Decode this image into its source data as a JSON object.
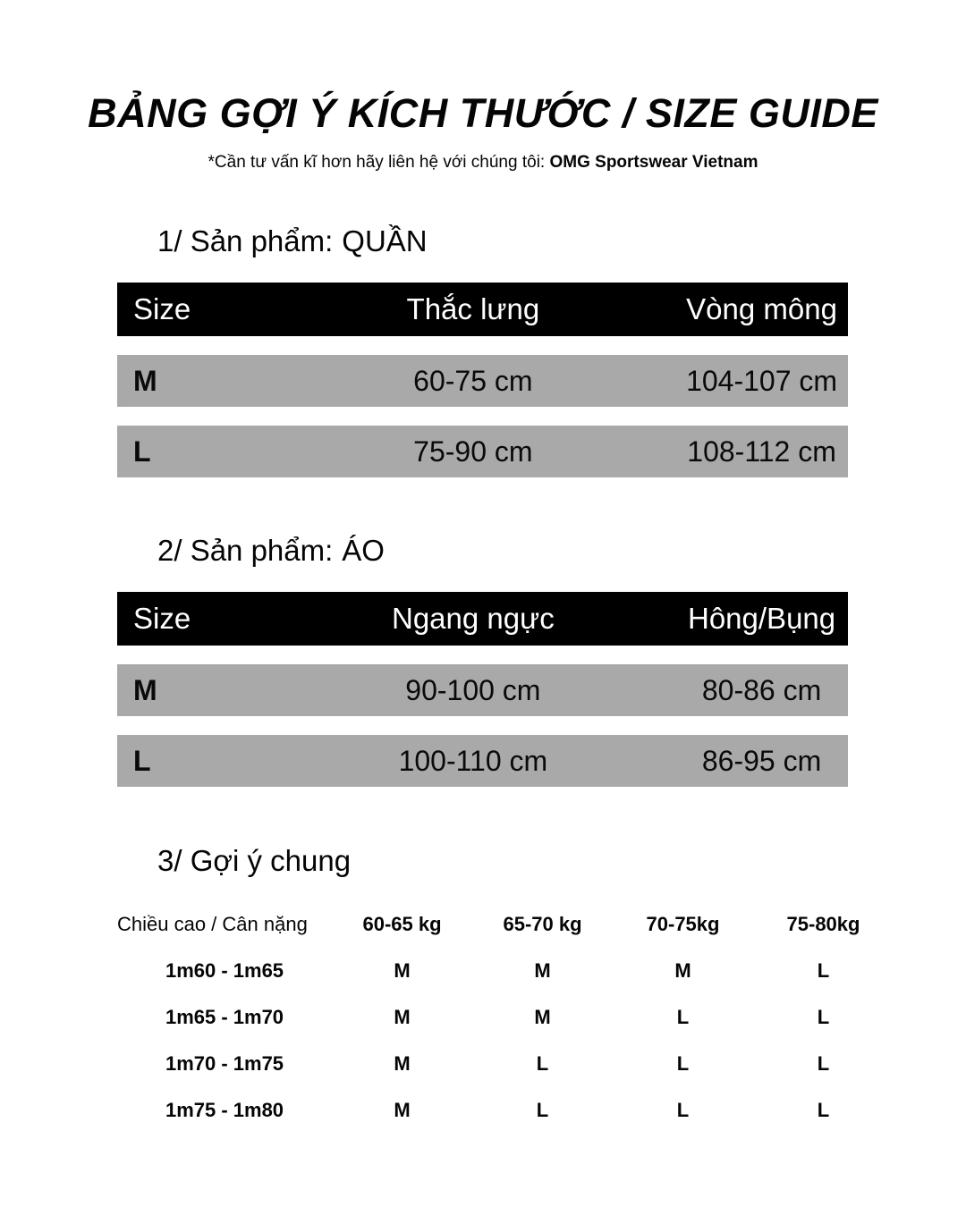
{
  "page": {
    "title": "BẢNG GỢI Ý KÍCH THƯỚC / SIZE GUIDE",
    "subtitle_prefix": "*Cần tư vấn kĩ hơn hãy liên hệ với chúng tôi: ",
    "subtitle_brand": "OMG Sportswear Vietnam"
  },
  "colors": {
    "header_bg": "#000000",
    "header_text": "#ffffff",
    "row_bg": "#a9a9a9",
    "text": "#050505"
  },
  "sections": [
    {
      "heading_label": "1/ Sản phẩm:",
      "heading_value": "QUẦN",
      "columns": [
        "Size",
        "Thắc lưng",
        "Vòng mông"
      ],
      "rows": [
        {
          "size": "M",
          "col2": "60-75 cm",
          "col3": "104-107 cm"
        },
        {
          "size": "L",
          "col2": "75-90 cm",
          "col3": "108-112 cm"
        }
      ]
    },
    {
      "heading_label": "2/ Sản phẩm:",
      "heading_value": "ÁO",
      "columns": [
        "Size",
        "Ngang ngực",
        "Hông/Bụng"
      ],
      "rows": [
        {
          "size": "M",
          "col2": "90-100 cm",
          "col3": "80-86 cm"
        },
        {
          "size": "L",
          "col2": "100-110 cm",
          "col3": "86-95 cm"
        }
      ]
    }
  ],
  "guide": {
    "heading": "3/ Gợi ý chung",
    "corner_label": "Chiều cao / Cân nặng",
    "weight_columns": [
      "60-65 kg",
      "65-70 kg",
      "70-75kg",
      "75-80kg"
    ],
    "rows": [
      {
        "height": "1m60 - 1m65",
        "sizes": [
          "M",
          "M",
          "M",
          "L"
        ]
      },
      {
        "height": "1m65 - 1m70",
        "sizes": [
          "M",
          "M",
          "L",
          "L"
        ]
      },
      {
        "height": "1m70 - 1m75",
        "sizes": [
          "M",
          "L",
          "L",
          "L"
        ]
      },
      {
        "height": "1m75 - 1m80",
        "sizes": [
          "M",
          "L",
          "L",
          "L"
        ]
      }
    ]
  }
}
